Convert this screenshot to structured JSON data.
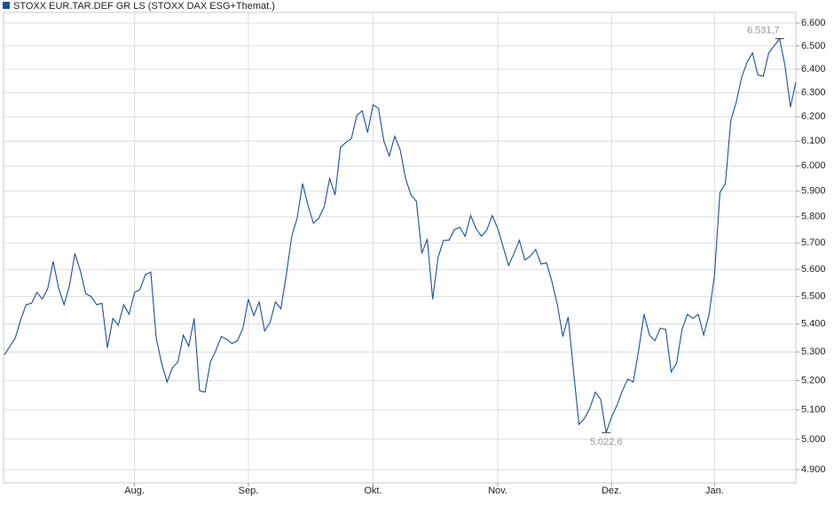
{
  "chart_data": {
    "type": "line",
    "log_scale": true,
    "grid": true,
    "legend": "top-left",
    "series": [
      {
        "name": "STOXX EUR.TAR.DEF GR LS (STOXX DAX ESG+Themat.)",
        "color": "#1c4f9c",
        "values": [
          5290,
          5320,
          5350,
          5415,
          5470,
          5475,
          5515,
          5490,
          5530,
          5630,
          5530,
          5470,
          5540,
          5660,
          5595,
          5510,
          5500,
          5470,
          5475,
          5315,
          5420,
          5395,
          5470,
          5435,
          5515,
          5525,
          5580,
          5590,
          5350,
          5260,
          5195,
          5245,
          5265,
          5360,
          5320,
          5420,
          5165,
          5160,
          5265,
          5305,
          5355,
          5345,
          5330,
          5340,
          5385,
          5490,
          5430,
          5480,
          5375,
          5405,
          5480,
          5455,
          5580,
          5725,
          5795,
          5930,
          5845,
          5775,
          5795,
          5840,
          5950,
          5885,
          6075,
          6095,
          6110,
          6205,
          6225,
          6135,
          6250,
          6235,
          6100,
          6040,
          6120,
          6065,
          5950,
          5885,
          5860,
          5660,
          5715,
          5490,
          5645,
          5710,
          5710,
          5750,
          5760,
          5725,
          5805,
          5755,
          5725,
          5750,
          5805,
          5755,
          5685,
          5615,
          5660,
          5710,
          5635,
          5650,
          5675,
          5620,
          5625,
          5555,
          5470,
          5355,
          5425,
          5230,
          5050,
          5070,
          5105,
          5160,
          5135,
          5022.6,
          5075,
          5115,
          5165,
          5205,
          5195,
          5305,
          5435,
          5360,
          5340,
          5385,
          5380,
          5230,
          5260,
          5380,
          5435,
          5420,
          5435,
          5360,
          5435,
          5580,
          5895,
          5930,
          6185,
          6260,
          6365,
          6430,
          6470,
          6375,
          6370,
          6470,
          6500,
          6531.7,
          6415,
          6240,
          6345
        ],
        "value_labels": [
          null,
          null,
          null,
          null,
          null,
          null,
          null,
          null,
          null,
          null,
          null,
          null,
          null,
          null,
          null,
          null,
          null,
          null,
          null,
          null,
          null,
          null,
          null,
          null,
          null,
          null,
          null,
          null,
          null,
          null,
          null,
          null,
          null,
          null,
          null,
          null,
          null,
          null,
          null,
          null,
          null,
          null,
          null,
          null,
          null,
          null,
          null,
          null,
          null,
          null,
          null,
          null,
          null,
          null,
          null,
          null,
          null,
          null,
          null,
          null,
          null,
          null,
          null,
          null,
          null,
          null,
          null,
          null,
          null,
          null,
          null,
          null,
          null,
          null,
          null,
          null,
          null,
          null,
          null,
          null,
          null,
          null,
          null,
          null,
          null,
          null,
          null,
          null,
          null,
          null,
          null,
          null,
          null,
          null,
          null,
          null,
          null,
          null,
          null,
          null,
          null,
          null,
          null,
          null,
          null,
          null,
          null,
          null,
          null,
          null,
          null,
          "5.022,6",
          null,
          null,
          null,
          null,
          null,
          null,
          null,
          null,
          null,
          null,
          null,
          null,
          null,
          null,
          null,
          null,
          null,
          null,
          null,
          null,
          null,
          null,
          null,
          null,
          null,
          null,
          null,
          null,
          null,
          null,
          null,
          "6.531,7",
          null,
          null,
          null
        ]
      }
    ],
    "categories": [
      null,
      null,
      null,
      null,
      null,
      null,
      null,
      null,
      null,
      null,
      null,
      null,
      null,
      null,
      null,
      null,
      null,
      null,
      null,
      null,
      null,
      null,
      null,
      null,
      "Aug.",
      null,
      null,
      null,
      null,
      null,
      null,
      null,
      null,
      null,
      null,
      null,
      null,
      null,
      null,
      null,
      null,
      null,
      null,
      null,
      null,
      "Sep.",
      null,
      null,
      null,
      null,
      null,
      null,
      null,
      null,
      null,
      null,
      null,
      null,
      null,
      null,
      null,
      null,
      null,
      null,
      null,
      null,
      null,
      null,
      "Okt.",
      null,
      null,
      null,
      null,
      null,
      null,
      null,
      null,
      null,
      null,
      null,
      null,
      null,
      null,
      null,
      null,
      null,
      null,
      null,
      null,
      null,
      null,
      "Nov.",
      null,
      null,
      null,
      null,
      null,
      null,
      null,
      null,
      null,
      null,
      null,
      null,
      null,
      null,
      null,
      null,
      null,
      null,
      null,
      null,
      "Dez.",
      null,
      null,
      null,
      null,
      null,
      null,
      null,
      null,
      null,
      null,
      null,
      null,
      null,
      null,
      null,
      null,
      null,
      null,
      "Jan.",
      null,
      null,
      null,
      null,
      null,
      null,
      null,
      null,
      null,
      null,
      null,
      null,
      null,
      null,
      null
    ],
    "ylim": [
      4857,
      6647
    ],
    "yticks": [
      {
        "value": 4900,
        "label": "4.900"
      },
      {
        "value": 5000,
        "label": "5.000"
      },
      {
        "value": 5100,
        "label": "5.100"
      },
      {
        "value": 5200,
        "label": "5.200"
      },
      {
        "value": 5300,
        "label": "5.300"
      },
      {
        "value": 5400,
        "label": "5.400"
      },
      {
        "value": 5500,
        "label": "5.500"
      },
      {
        "value": 5600,
        "label": "5.600"
      },
      {
        "value": 5700,
        "label": "5.700"
      },
      {
        "value": 5800,
        "label": "5.800"
      },
      {
        "value": 5900,
        "label": "5.900"
      },
      {
        "value": 6000,
        "label": "6.000"
      },
      {
        "value": 6100,
        "label": "6.100"
      },
      {
        "value": 6200,
        "label": "6.200"
      },
      {
        "value": 6300,
        "label": "6.300"
      },
      {
        "value": 6400,
        "label": "6.400"
      },
      {
        "value": 6500,
        "label": "6.500"
      },
      {
        "value": 6600,
        "label": "6.600"
      }
    ]
  }
}
